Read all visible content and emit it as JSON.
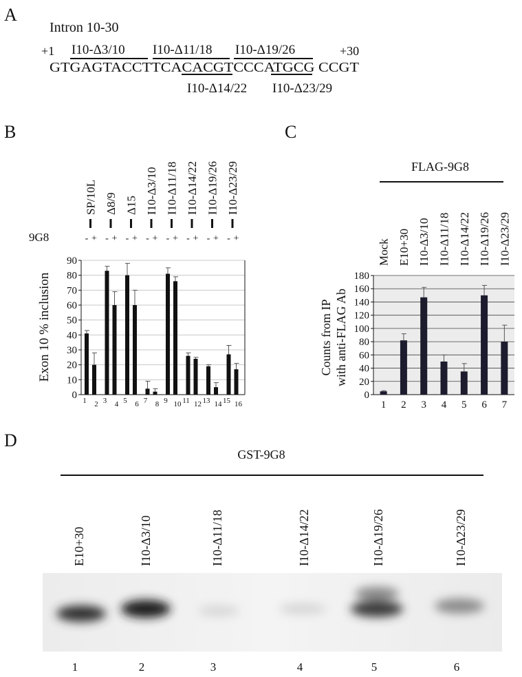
{
  "panel_labels": [
    "A",
    "B",
    "C",
    "D"
  ],
  "panel_a": {
    "title": "Intron 10-30",
    "start": "+1",
    "end": "+30",
    "sequence": "GTGAGTACCTTCACACGTCCCATGCG CCGT",
    "top_labels": [
      "I10-Δ3/10",
      "I10-Δ11/18",
      "I10-Δ19/26"
    ],
    "bottom_labels": [
      "I10-Δ14/22",
      "I10-Δ23/29"
    ]
  },
  "chart_data": [
    {
      "type": "bar",
      "ylabel": "Exon 10 % inclusion",
      "categories": [
        "1",
        "2",
        "3",
        "4",
        "5",
        "6",
        "7",
        "8",
        "9",
        "10",
        "11",
        "12",
        "13",
        "14",
        "15",
        "16"
      ],
      "values": [
        41,
        20,
        83,
        60,
        80,
        60,
        4,
        2,
        81,
        76,
        26,
        24,
        19,
        5,
        27,
        17
      ],
      "errors": [
        2,
        8,
        3,
        9,
        8,
        10,
        5,
        2,
        4,
        3,
        2,
        1,
        1,
        3,
        6,
        4
      ],
      "color": "#111111",
      "ylim": [
        0,
        90
      ],
      "yticks": [
        0,
        10,
        20,
        30,
        40,
        50,
        60,
        70,
        80,
        90
      ],
      "grid": true,
      "group_labels": [
        "SP/10L",
        "Δ8/9",
        "Δ15",
        "I10-Δ3/10",
        "I10-Δ11/18",
        "I10-Δ14/22",
        "I10-Δ19/26",
        "I10-Δ23/29"
      ],
      "treatment_label": "9G8",
      "treatments": [
        "-",
        "+",
        "-",
        "+",
        "-",
        "+",
        "-",
        "+",
        "-",
        "+",
        "-",
        "+",
        "-",
        "+",
        "-",
        "+"
      ]
    },
    {
      "type": "bar",
      "ylabel": [
        "Counts from IP",
        "with anti-FLAG Ab"
      ],
      "header": "FLAG-9G8",
      "sample_labels": [
        "Mock",
        "E10+30",
        "I10-Δ3/10",
        "I10-Δ11/18",
        "I10-Δ14/22",
        "I10-Δ19/26",
        "I10-Δ23/29"
      ],
      "categories": [
        "1",
        "2",
        "3",
        "4",
        "5",
        "6",
        "7"
      ],
      "values": [
        5,
        82,
        147,
        50,
        35,
        150,
        80
      ],
      "errors": [
        1,
        10,
        15,
        10,
        12,
        15,
        25
      ],
      "color": "#1c1c2e",
      "background": "#ececec",
      "ylim": [
        0,
        180
      ],
      "yticks": [
        0,
        20,
        40,
        60,
        80,
        100,
        120,
        140,
        160,
        180
      ],
      "grid": true
    }
  ],
  "panel_d": {
    "header": "GST-9G8",
    "lane_labels": [
      "E10+30",
      "I10-Δ3/10",
      "I10-Δ11/18",
      "I10-Δ14/22",
      "I10-Δ19/26",
      "I10-Δ23/29"
    ],
    "lane_numbers": [
      "1",
      "2",
      "3",
      "4",
      "5",
      "6"
    ]
  }
}
